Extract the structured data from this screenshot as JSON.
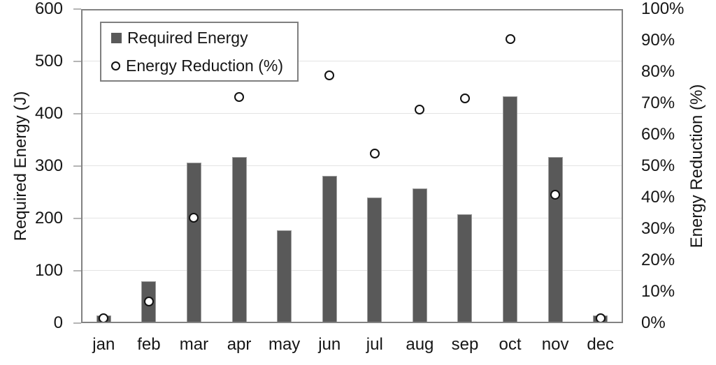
{
  "chart_data": {
    "type": "combo-bar-scatter",
    "categories": [
      "jan",
      "feb",
      "mar",
      "apr",
      "may",
      "jun",
      "jul",
      "aug",
      "sep",
      "oct",
      "nov",
      "dec"
    ],
    "series": [
      {
        "name": "Required Energy",
        "type": "bar",
        "axis": "left",
        "color": "#595959",
        "values": [
          15,
          80,
          307,
          318,
          178,
          282,
          240,
          257,
          208,
          433,
          318,
          15
        ]
      },
      {
        "name": "Energy Reduction (%)",
        "type": "scatter",
        "axis": "right",
        "marker": "open-circle",
        "color": "#111111",
        "values": [
          1.5,
          7,
          33.5,
          72,
          null,
          79,
          54,
          68,
          71.5,
          90.5,
          41,
          1.5
        ]
      }
    ],
    "left_axis": {
      "title": "Required Energy (J)",
      "min": 0,
      "max": 600,
      "step": 100,
      "tick_labels": [
        "0",
        "100",
        "200",
        "300",
        "400",
        "500",
        "600"
      ]
    },
    "right_axis": {
      "title": "Energy Reduction (%)",
      "min": 0,
      "max": 100,
      "step": 10,
      "tick_labels": [
        "0%",
        "10%",
        "20%",
        "30%",
        "40%",
        "50%",
        "60%",
        "70%",
        "80%",
        "90%",
        "100%"
      ]
    },
    "legend": {
      "position": "top-left"
    },
    "grid": "horizontal-major",
    "plot_background": "#ffffff"
  },
  "colors": {
    "bar_fill": "#595959",
    "marker_stroke": "#111111",
    "gridline": "#e3e3e3",
    "plot_border": "#828282",
    "text": "#161616"
  }
}
